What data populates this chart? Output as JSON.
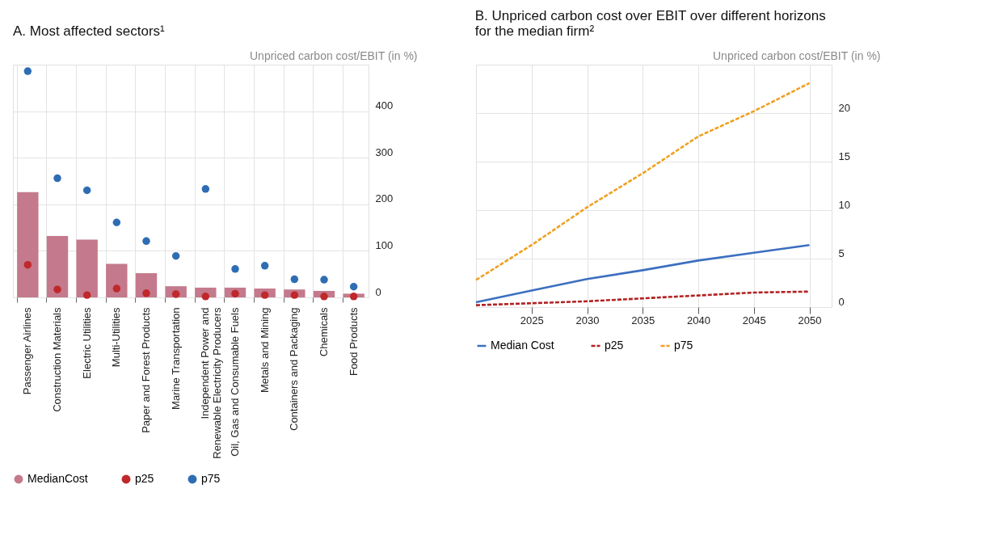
{
  "chart_data": [
    {
      "type": "bar",
      "title": "A. Most affected sectors¹",
      "ylabel": "Unpriced carbon cost/EBIT (in %)",
      "categories": [
        "Passenger Airlines",
        "Construction Materials",
        "Electric Utilities",
        "Multi-Utilities",
        "Paper and Forest Products",
        "Marine Transportation",
        "Independent Power and Renewable Electricity Producers",
        "Oil, Gas and Consumable Fuels",
        "Metals and Mining",
        "Containers and Packaging",
        "Chemicals",
        "Food Products"
      ],
      "series": [
        {
          "name": "MedianCost",
          "type": "bar",
          "color": "#c47a8c",
          "values": [
            226,
            132,
            124,
            72,
            52,
            24,
            21,
            21,
            19,
            17,
            14,
            8
          ]
        },
        {
          "name": "p25",
          "type": "scatter",
          "color": "#c0282b",
          "values": [
            70,
            17,
            5,
            19,
            9,
            7,
            2,
            8,
            5,
            5,
            2,
            2
          ]
        },
        {
          "name": "p75",
          "type": "scatter",
          "color": "#2e6db4",
          "values": [
            486,
            256,
            230,
            161,
            121,
            89,
            233,
            61,
            68,
            39,
            38,
            23
          ]
        }
      ],
      "marker": "circle",
      "ylim": [
        0,
        500
      ],
      "yticks": [
        0,
        100,
        200,
        300,
        400
      ],
      "grid": true,
      "legend": "bottom"
    },
    {
      "type": "line",
      "title": "B. Unpriced carbon cost over EBIT over different horizons for the median firm²",
      "ylabel": "Unpriced carbon cost/EBIT (in %)",
      "x": [
        2020,
        2025,
        2030,
        2035,
        2040,
        2045,
        2050
      ],
      "series": [
        {
          "name": "Median Cost",
          "color": "#3c6fc0",
          "line_style": "solid",
          "values": [
            0.5,
            1.7,
            2.9,
            3.8,
            4.8,
            5.6,
            6.4
          ]
        },
        {
          "name": "p25",
          "color": "#b22222",
          "line_style": "dashed",
          "values": [
            0.2,
            0.4,
            0.6,
            0.9,
            1.2,
            1.5,
            1.6
          ]
        },
        {
          "name": "p75",
          "color": "#f0a020",
          "line_style": "dashed",
          "values": [
            2.8,
            6.4,
            10.3,
            13.8,
            17.6,
            20.2,
            23.1
          ]
        }
      ],
      "xlim": [
        2020,
        2052
      ],
      "xticks": [
        2025,
        2030,
        2035,
        2040,
        2045,
        2050
      ],
      "ylim": [
        0,
        25
      ],
      "yticks": [
        0,
        5,
        10,
        15,
        20
      ],
      "grid": true,
      "legend": "bottom"
    }
  ]
}
